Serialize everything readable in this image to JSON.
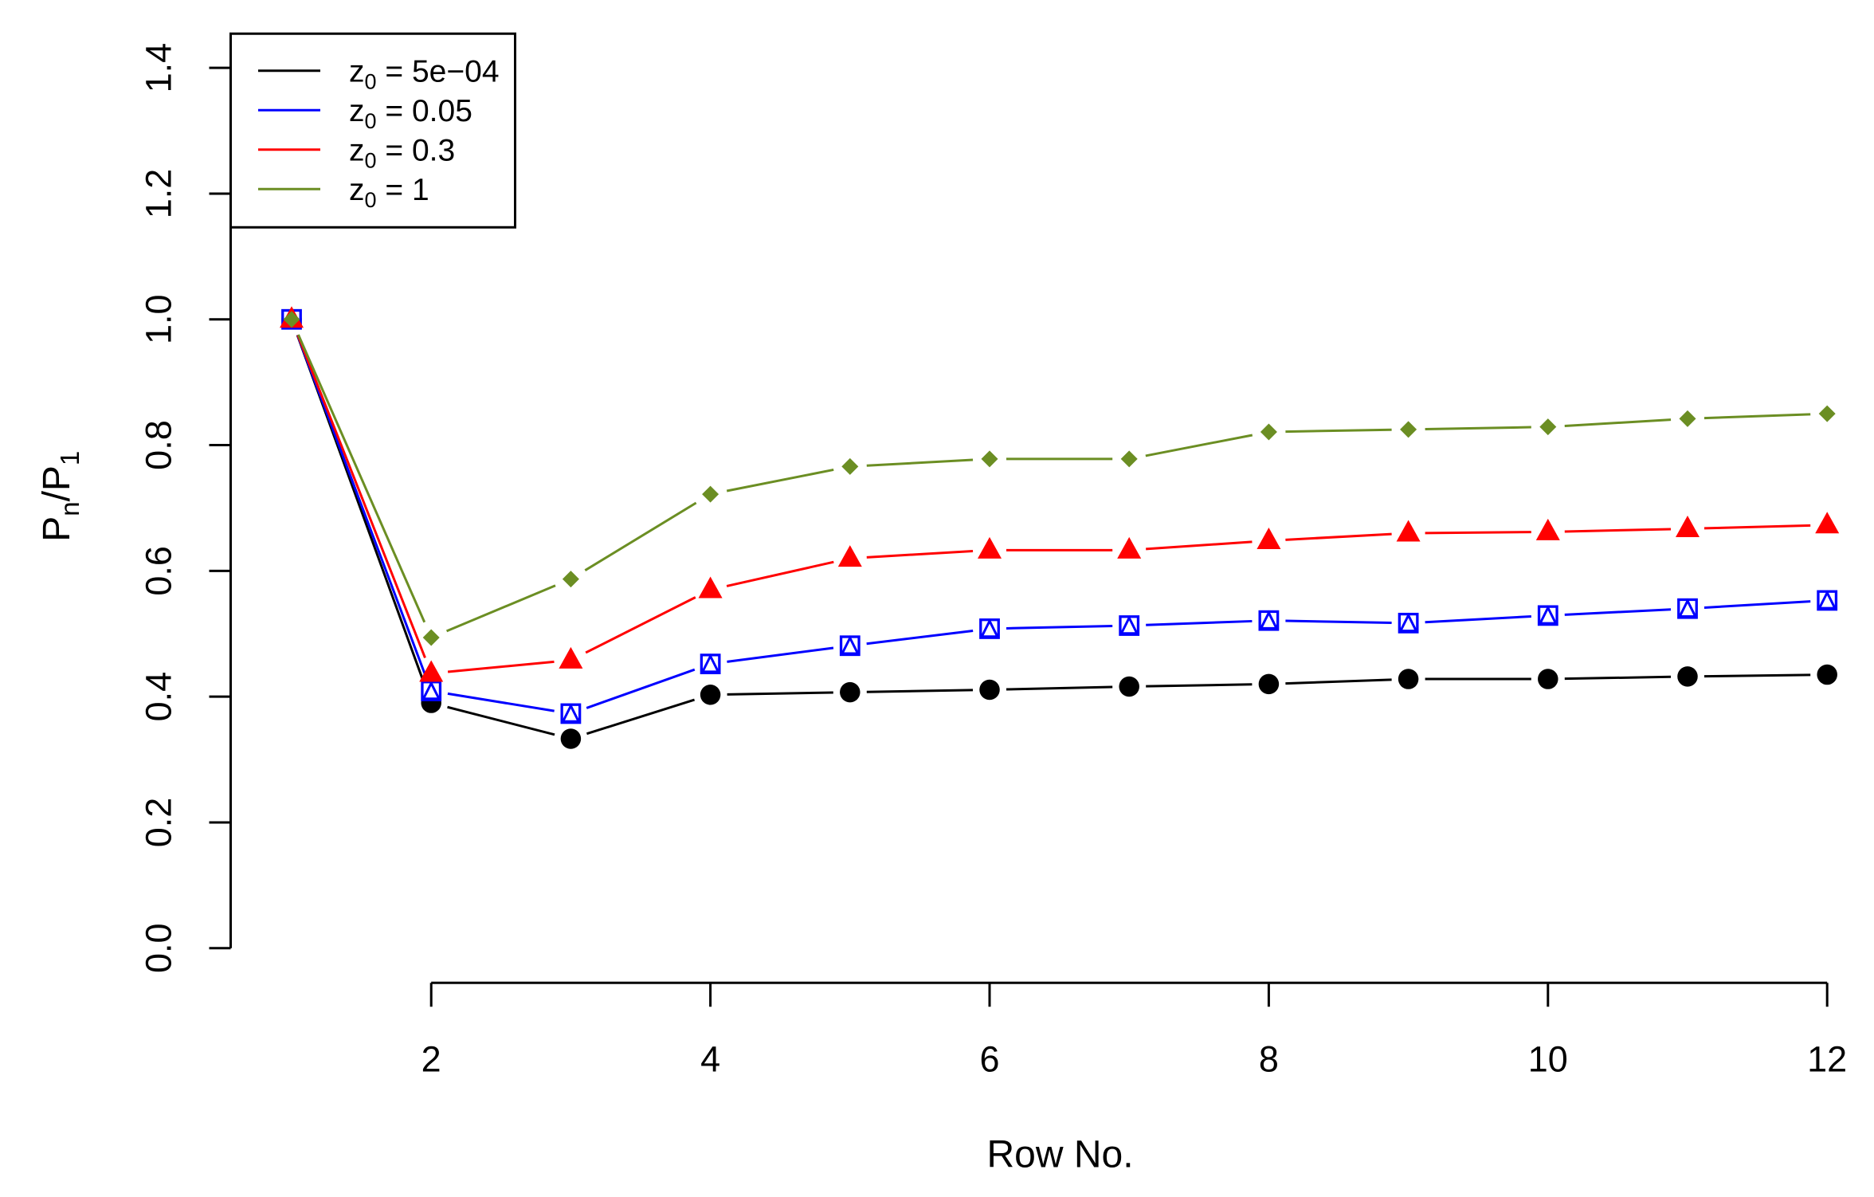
{
  "chart_data": {
    "type": "line",
    "title": "",
    "xlabel": "Row No.",
    "ylabel": {
      "main": "P",
      "sub1": "n",
      "sep": "/",
      "main2": "P",
      "sub2": "1"
    },
    "x": [
      1,
      2,
      3,
      4,
      5,
      6,
      7,
      8,
      9,
      10,
      11,
      12
    ],
    "xticks": [
      "2",
      "4",
      "6",
      "8",
      "10",
      "12"
    ],
    "yticks": [
      "0.0",
      "0.2",
      "0.4",
      "0.6",
      "0.8",
      "1.0",
      "1.2",
      "1.4"
    ],
    "xlim": [
      1,
      12
    ],
    "ylim": [
      0,
      1.4
    ],
    "grid": false,
    "legend_position": "top-left",
    "series": [
      {
        "name": "z0 = 5e−04",
        "label_main": "z",
        "label_sub": "0",
        "label_rest": " = 5e−04",
        "color": "#000000",
        "marker": "circle",
        "values": [
          1.0,
          0.39,
          0.333,
          0.403,
          0.407,
          0.411,
          0.416,
          0.42,
          0.428,
          0.428,
          0.432,
          0.435
        ]
      },
      {
        "name": "z0 = 0.05",
        "label_main": "z",
        "label_sub": "0",
        "label_rest": " = 0.05",
        "color": "#0000ff",
        "marker": "square-triangle",
        "values": [
          1.0,
          0.409,
          0.373,
          0.452,
          0.481,
          0.508,
          0.513,
          0.521,
          0.517,
          0.529,
          0.54,
          0.553
        ]
      },
      {
        "name": "z0 = 0.3",
        "label_main": "z",
        "label_sub": "0",
        "label_rest": " = 0.3",
        "color": "#ff0000",
        "marker": "triangle",
        "values": [
          1.0,
          0.437,
          0.458,
          0.57,
          0.62,
          0.633,
          0.633,
          0.648,
          0.66,
          0.662,
          0.667,
          0.673
        ]
      },
      {
        "name": "z0 = 1",
        "label_main": "z",
        "label_sub": "0",
        "label_rest": " = 1",
        "color": "#6b8e23",
        "marker": "diamond",
        "values": [
          1.0,
          0.494,
          0.587,
          0.722,
          0.766,
          0.778,
          0.778,
          0.821,
          0.825,
          0.829,
          0.842,
          0.85
        ]
      }
    ]
  }
}
